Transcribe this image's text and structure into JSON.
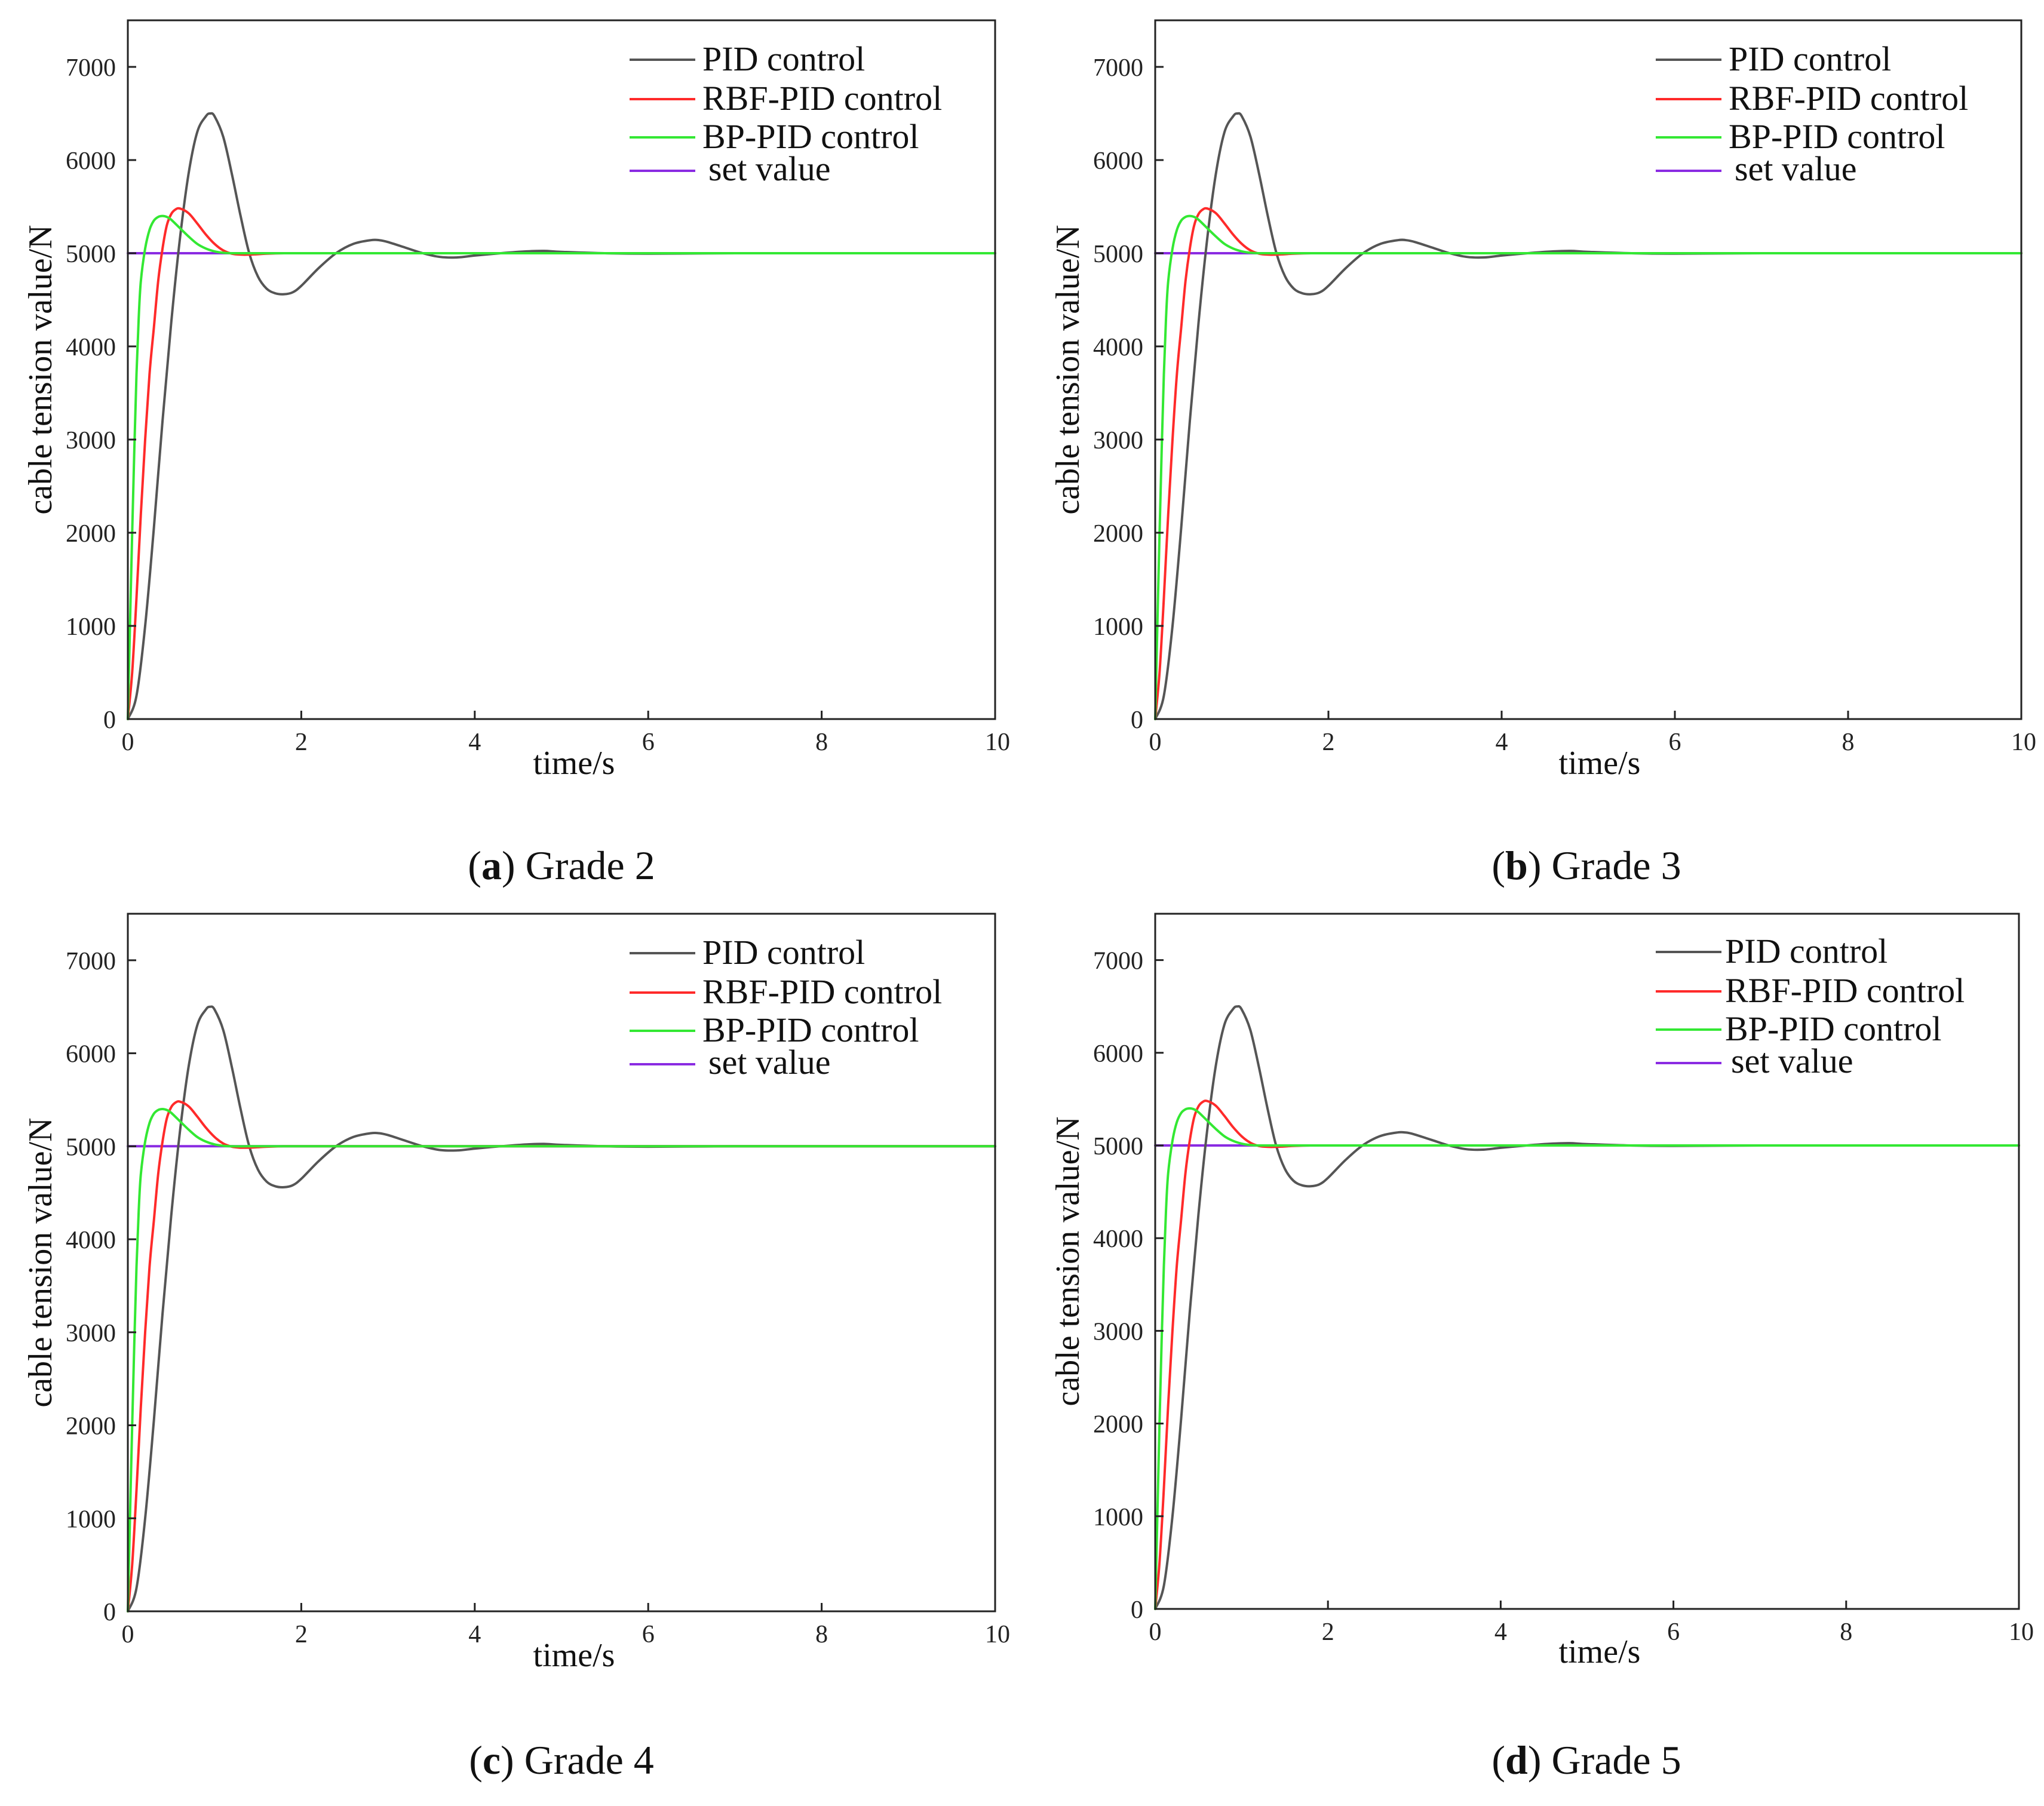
{
  "figure": {
    "panels": [
      {
        "letter": "a",
        "grade": "Grade 2"
      },
      {
        "letter": "b",
        "grade": "Grade 3"
      },
      {
        "letter": "c",
        "grade": "Grade 4"
      },
      {
        "letter": "d",
        "grade": "Grade 5"
      }
    ]
  },
  "colors": {
    "pid": "#555555",
    "rbf": "#ff2a2a",
    "bp": "#33e833",
    "set": "#8a2be2"
  },
  "chart_data": [
    {
      "type": "line",
      "title": "(a) Grade 2",
      "xlabel": "time/s",
      "ylabel": "cable tension value/N",
      "xlim": [
        0,
        10
      ],
      "ylim": [
        0,
        7500
      ],
      "xticks": [
        0,
        2,
        4,
        6,
        8,
        10
      ],
      "yticks": [
        0,
        1000,
        2000,
        3000,
        4000,
        5000,
        6000,
        7000
      ],
      "legend": [
        "PID control",
        "RBF-PID control",
        "BP-PID control",
        "set value"
      ],
      "series": [
        {
          "name": "PID control",
          "x": [
            0,
            0.1,
            0.2,
            0.3,
            0.4,
            0.5,
            0.6,
            0.7,
            0.8,
            0.9,
            0.95,
            1.0,
            1.1,
            1.2,
            1.3,
            1.4,
            1.5,
            1.6,
            1.7,
            1.8,
            1.9,
            2.0,
            2.2,
            2.4,
            2.6,
            2.8,
            2.9,
            3.0,
            3.2,
            3.4,
            3.6,
            3.8,
            4.0,
            4.3,
            4.6,
            4.8,
            5.0,
            5.5,
            6.0,
            7.0,
            8.0,
            9.0,
            10.0
          ],
          "y": [
            0,
            250,
            1000,
            2050,
            3200,
            4250,
            5150,
            5850,
            6300,
            6470,
            6500,
            6470,
            6250,
            5850,
            5400,
            5000,
            4750,
            4620,
            4570,
            4560,
            4580,
            4650,
            4840,
            5000,
            5100,
            5140,
            5140,
            5120,
            5060,
            5000,
            4960,
            4955,
            4975,
            5000,
            5020,
            5025,
            5015,
            5000,
            4995,
            5000,
            5000,
            5000,
            5000
          ]
        },
        {
          "name": "RBF-PID control",
          "x": [
            0,
            0.05,
            0.1,
            0.15,
            0.2,
            0.25,
            0.3,
            0.35,
            0.4,
            0.45,
            0.5,
            0.55,
            0.6,
            0.7,
            0.8,
            0.9,
            1.0,
            1.1,
            1.2,
            1.3,
            1.4,
            1.5,
            1.6,
            1.8,
            2.0,
            2.5,
            3.0,
            4.0,
            6.0,
            10.0
          ],
          "y": [
            0,
            500,
            1300,
            2200,
            3000,
            3700,
            4200,
            4700,
            5050,
            5300,
            5420,
            5470,
            5480,
            5430,
            5320,
            5200,
            5100,
            5030,
            4995,
            4985,
            4985,
            4990,
            4995,
            5000,
            5000,
            5000,
            5000,
            5000,
            5000,
            5000
          ]
        },
        {
          "name": "BP-PID control",
          "x": [
            0,
            0.025,
            0.05,
            0.075,
            0.1,
            0.125,
            0.15,
            0.2,
            0.25,
            0.3,
            0.35,
            0.4,
            0.45,
            0.5,
            0.6,
            0.7,
            0.8,
            0.9,
            1.0,
            1.1,
            1.2,
            1.4,
            1.6,
            2.0,
            3.0,
            4.0,
            6.0,
            10.0
          ],
          "y": [
            0,
            1000,
            2000,
            2900,
            3700,
            4300,
            4700,
            5050,
            5250,
            5350,
            5390,
            5400,
            5390,
            5360,
            5270,
            5180,
            5100,
            5050,
            5020,
            5005,
            5000,
            5000,
            5000,
            5000,
            5000,
            5000,
            5000,
            5000
          ]
        },
        {
          "name": "set value",
          "x": [
            0,
            10
          ],
          "y": [
            5000,
            5000
          ]
        }
      ]
    },
    {
      "type": "line",
      "title": "(b) Grade 3",
      "xlabel": "time/s",
      "ylabel": "cable tension value/N",
      "xlim": [
        0,
        10
      ],
      "ylim": [
        0,
        7500
      ],
      "xticks": [
        0,
        2,
        4,
        6,
        8,
        10
      ],
      "yticks": [
        0,
        1000,
        2000,
        3000,
        4000,
        5000,
        6000,
        7000
      ],
      "legend": [
        "PID control",
        "RBF-PID control",
        "BP-PID control",
        "set value"
      ],
      "series": [
        {
          "name": "PID control",
          "x": [
            0,
            0.1,
            0.2,
            0.3,
            0.4,
            0.5,
            0.6,
            0.7,
            0.8,
            0.9,
            0.95,
            1.0,
            1.1,
            1.2,
            1.3,
            1.4,
            1.5,
            1.6,
            1.7,
            1.8,
            1.9,
            2.0,
            2.2,
            2.4,
            2.6,
            2.8,
            2.9,
            3.0,
            3.2,
            3.4,
            3.6,
            3.8,
            4.0,
            4.3,
            4.6,
            4.8,
            5.0,
            5.5,
            6.0,
            7.0,
            8.0,
            9.0,
            10.0
          ],
          "y": [
            0,
            250,
            1000,
            2050,
            3200,
            4250,
            5150,
            5850,
            6300,
            6470,
            6500,
            6470,
            6250,
            5850,
            5400,
            5000,
            4750,
            4620,
            4570,
            4560,
            4580,
            4650,
            4840,
            5000,
            5100,
            5140,
            5140,
            5120,
            5060,
            5000,
            4960,
            4955,
            4975,
            5000,
            5020,
            5025,
            5015,
            5000,
            4995,
            5000,
            5000,
            5000,
            5000
          ]
        },
        {
          "name": "RBF-PID control",
          "x": [
            0,
            0.05,
            0.1,
            0.15,
            0.2,
            0.25,
            0.3,
            0.35,
            0.4,
            0.45,
            0.5,
            0.55,
            0.6,
            0.7,
            0.8,
            0.9,
            1.0,
            1.1,
            1.2,
            1.3,
            1.4,
            1.5,
            1.6,
            1.8,
            2.0,
            2.5,
            3.0,
            4.0,
            6.0,
            10.0
          ],
          "y": [
            0,
            500,
            1300,
            2200,
            3000,
            3700,
            4200,
            4700,
            5050,
            5300,
            5420,
            5470,
            5480,
            5430,
            5320,
            5200,
            5100,
            5030,
            4995,
            4985,
            4985,
            4990,
            4995,
            5000,
            5000,
            5000,
            5000,
            5000,
            5000,
            5000
          ]
        },
        {
          "name": "BP-PID control",
          "x": [
            0,
            0.025,
            0.05,
            0.075,
            0.1,
            0.125,
            0.15,
            0.2,
            0.25,
            0.3,
            0.35,
            0.4,
            0.45,
            0.5,
            0.6,
            0.7,
            0.8,
            0.9,
            1.0,
            1.1,
            1.2,
            1.4,
            1.6,
            2.0,
            3.0,
            4.0,
            6.0,
            10.0
          ],
          "y": [
            0,
            1000,
            2000,
            2900,
            3700,
            4300,
            4700,
            5050,
            5250,
            5350,
            5390,
            5400,
            5390,
            5360,
            5270,
            5180,
            5100,
            5050,
            5020,
            5005,
            5000,
            5000,
            5000,
            5000,
            5000,
            5000,
            5000,
            5000
          ]
        },
        {
          "name": "set value",
          "x": [
            0,
            10
          ],
          "y": [
            5000,
            5000
          ]
        }
      ]
    },
    {
      "type": "line",
      "title": "(c) Grade 4",
      "xlabel": "time/s",
      "ylabel": "cable tension value/N",
      "xlim": [
        0,
        10
      ],
      "ylim": [
        0,
        7500
      ],
      "xticks": [
        0,
        2,
        4,
        6,
        8,
        10
      ],
      "yticks": [
        0,
        1000,
        2000,
        3000,
        4000,
        5000,
        6000,
        7000
      ],
      "legend": [
        "PID control",
        "RBF-PID control",
        "BP-PID control",
        "set value"
      ],
      "series": [
        {
          "name": "PID control",
          "x": [
            0,
            0.1,
            0.2,
            0.3,
            0.4,
            0.5,
            0.6,
            0.7,
            0.8,
            0.9,
            0.95,
            1.0,
            1.1,
            1.2,
            1.3,
            1.4,
            1.5,
            1.6,
            1.7,
            1.8,
            1.9,
            2.0,
            2.2,
            2.4,
            2.6,
            2.8,
            2.9,
            3.0,
            3.2,
            3.4,
            3.6,
            3.8,
            4.0,
            4.3,
            4.6,
            4.8,
            5.0,
            5.5,
            6.0,
            7.0,
            8.0,
            9.0,
            10.0
          ],
          "y": [
            0,
            250,
            1000,
            2050,
            3200,
            4250,
            5150,
            5850,
            6300,
            6470,
            6500,
            6470,
            6250,
            5850,
            5400,
            5000,
            4750,
            4620,
            4570,
            4560,
            4580,
            4650,
            4840,
            5000,
            5100,
            5140,
            5140,
            5120,
            5060,
            5000,
            4960,
            4955,
            4975,
            5000,
            5020,
            5025,
            5015,
            5000,
            4995,
            5000,
            5000,
            5000,
            5000
          ]
        },
        {
          "name": "RBF-PID control",
          "x": [
            0,
            0.05,
            0.1,
            0.15,
            0.2,
            0.25,
            0.3,
            0.35,
            0.4,
            0.45,
            0.5,
            0.55,
            0.6,
            0.7,
            0.8,
            0.9,
            1.0,
            1.1,
            1.2,
            1.3,
            1.4,
            1.5,
            1.6,
            1.8,
            2.0,
            2.5,
            3.0,
            4.0,
            6.0,
            10.0
          ],
          "y": [
            0,
            500,
            1300,
            2200,
            3000,
            3700,
            4200,
            4700,
            5050,
            5300,
            5420,
            5470,
            5480,
            5430,
            5320,
            5200,
            5100,
            5030,
            4995,
            4985,
            4985,
            4990,
            4995,
            5000,
            5000,
            5000,
            5000,
            5000,
            5000,
            5000
          ]
        },
        {
          "name": "BP-PID control",
          "x": [
            0,
            0.025,
            0.05,
            0.075,
            0.1,
            0.125,
            0.15,
            0.2,
            0.25,
            0.3,
            0.35,
            0.4,
            0.45,
            0.5,
            0.6,
            0.7,
            0.8,
            0.9,
            1.0,
            1.1,
            1.2,
            1.4,
            1.6,
            2.0,
            3.0,
            4.0,
            6.0,
            10.0
          ],
          "y": [
            0,
            1000,
            2000,
            2900,
            3700,
            4300,
            4700,
            5050,
            5250,
            5350,
            5390,
            5400,
            5390,
            5360,
            5270,
            5180,
            5100,
            5050,
            5020,
            5005,
            5000,
            5000,
            5000,
            5000,
            5000,
            5000,
            5000,
            5000
          ]
        },
        {
          "name": "set value",
          "x": [
            0,
            10
          ],
          "y": [
            5000,
            5000
          ]
        }
      ]
    },
    {
      "type": "line",
      "title": "(d) Grade 5",
      "xlabel": "time/s",
      "ylabel": "cable tension value/N",
      "xlim": [
        0,
        10
      ],
      "ylim": [
        0,
        7500
      ],
      "xticks": [
        0,
        2,
        4,
        6,
        8,
        10
      ],
      "yticks": [
        0,
        1000,
        2000,
        3000,
        4000,
        5000,
        6000,
        7000
      ],
      "legend": [
        "PID control",
        "RBF-PID control",
        "BP-PID control",
        "set value"
      ],
      "series": [
        {
          "name": "PID control",
          "x": [
            0,
            0.1,
            0.2,
            0.3,
            0.4,
            0.5,
            0.6,
            0.7,
            0.8,
            0.9,
            0.95,
            1.0,
            1.1,
            1.2,
            1.3,
            1.4,
            1.5,
            1.6,
            1.7,
            1.8,
            1.9,
            2.0,
            2.2,
            2.4,
            2.6,
            2.8,
            2.9,
            3.0,
            3.2,
            3.4,
            3.6,
            3.8,
            4.0,
            4.3,
            4.6,
            4.8,
            5.0,
            5.5,
            6.0,
            7.0,
            8.0,
            9.0,
            10.0
          ],
          "y": [
            0,
            250,
            1000,
            2050,
            3200,
            4250,
            5150,
            5850,
            6300,
            6470,
            6500,
            6470,
            6250,
            5850,
            5400,
            5000,
            4750,
            4620,
            4570,
            4560,
            4580,
            4650,
            4840,
            5000,
            5100,
            5140,
            5140,
            5120,
            5060,
            5000,
            4960,
            4955,
            4975,
            5000,
            5020,
            5025,
            5015,
            5000,
            4995,
            5000,
            5000,
            5000,
            5000
          ]
        },
        {
          "name": "RBF-PID control",
          "x": [
            0,
            0.05,
            0.1,
            0.15,
            0.2,
            0.25,
            0.3,
            0.35,
            0.4,
            0.45,
            0.5,
            0.55,
            0.6,
            0.7,
            0.8,
            0.9,
            1.0,
            1.1,
            1.2,
            1.3,
            1.4,
            1.5,
            1.6,
            1.8,
            2.0,
            2.5,
            3.0,
            4.0,
            6.0,
            10.0
          ],
          "y": [
            0,
            500,
            1300,
            2200,
            3000,
            3700,
            4200,
            4700,
            5050,
            5300,
            5420,
            5470,
            5480,
            5430,
            5320,
            5200,
            5100,
            5030,
            4995,
            4985,
            4985,
            4990,
            4995,
            5000,
            5000,
            5000,
            5000,
            5000,
            5000,
            5000
          ]
        },
        {
          "name": "BP-PID control",
          "x": [
            0,
            0.025,
            0.05,
            0.075,
            0.1,
            0.125,
            0.15,
            0.2,
            0.25,
            0.3,
            0.35,
            0.4,
            0.45,
            0.5,
            0.6,
            0.7,
            0.8,
            0.9,
            1.0,
            1.1,
            1.2,
            1.4,
            1.6,
            2.0,
            3.0,
            4.0,
            6.0,
            10.0
          ],
          "y": [
            0,
            1000,
            2000,
            2900,
            3700,
            4300,
            4700,
            5050,
            5250,
            5350,
            5390,
            5400,
            5390,
            5360,
            5270,
            5180,
            5100,
            5050,
            5020,
            5005,
            5000,
            5000,
            5000,
            5000,
            5000,
            5000,
            5000,
            5000
          ]
        },
        {
          "name": "set value",
          "x": [
            0,
            10
          ],
          "y": [
            5000,
            5000
          ]
        }
      ]
    }
  ]
}
